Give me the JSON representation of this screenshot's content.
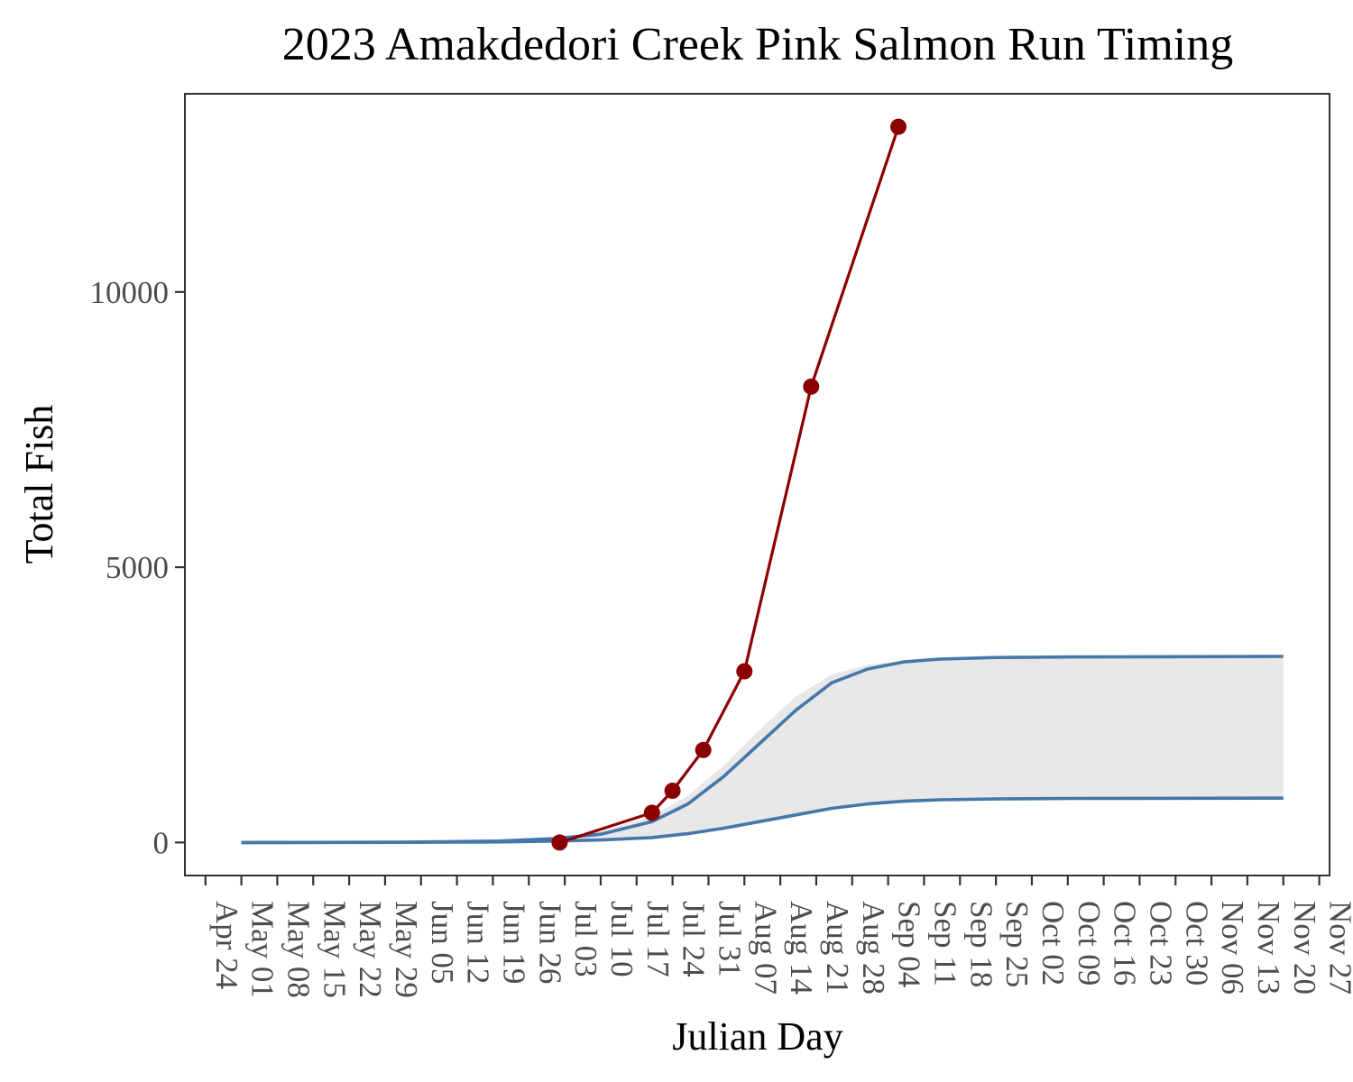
{
  "chart_data": {
    "type": "line",
    "title": "2023 Amakdedori Creek Pink Salmon Run Timing",
    "xlabel": "Julian Day",
    "ylabel": "Total Fish",
    "x_is_date": true,
    "xlim": [
      "2023-04-20",
      "2023-11-29"
    ],
    "ylim": [
      -600,
      13600
    ],
    "x_ticks": [
      "Apr 24",
      "May 01",
      "May 08",
      "May 15",
      "May 22",
      "May 29",
      "Jun 05",
      "Jun 12",
      "Jun 19",
      "Jun 26",
      "Jul 03",
      "Jul 10",
      "Jul 17",
      "Jul 24",
      "Jul 31",
      "Aug 07",
      "Aug 14",
      "Aug 21",
      "Aug 28",
      "Sep 04",
      "Sep 11",
      "Sep 18",
      "Sep 25",
      "Oct 02",
      "Oct 09",
      "Oct 16",
      "Oct 23",
      "Oct 30",
      "Nov 06",
      "Nov 13",
      "Nov 20",
      "Nov 27"
    ],
    "y_ticks": [
      0,
      5000,
      10000
    ],
    "grid": false,
    "series": [
      {
        "kind": "observed",
        "color": "#8b0000",
        "x": [
          "2023-07-02",
          "2023-07-20",
          "2023-07-24",
          "2023-07-30",
          "2023-08-07",
          "2023-08-20",
          "2023-09-06"
        ],
        "y": [
          0,
          540,
          940,
          1680,
          3110,
          8280,
          13000
        ]
      },
      {
        "kind": "upper-curve",
        "color": "#4577a8",
        "x": [
          "2023-05-01",
          "2023-06-01",
          "2023-06-20",
          "2023-07-01",
          "2023-07-10",
          "2023-07-20",
          "2023-07-27",
          "2023-08-03",
          "2023-08-10",
          "2023-08-17",
          "2023-08-24",
          "2023-08-31",
          "2023-09-07",
          "2023-09-14",
          "2023-09-25",
          "2023-10-10",
          "2023-11-20"
        ],
        "y": [
          0,
          5,
          25,
          70,
          150,
          380,
          700,
          1200,
          1800,
          2400,
          2900,
          3150,
          3280,
          3330,
          3360,
          3370,
          3380
        ]
      },
      {
        "kind": "lower-curve",
        "color": "#4577a8",
        "x": [
          "2023-05-01",
          "2023-06-01",
          "2023-06-20",
          "2023-07-01",
          "2023-07-10",
          "2023-07-20",
          "2023-07-27",
          "2023-08-03",
          "2023-08-10",
          "2023-08-17",
          "2023-08-24",
          "2023-08-31",
          "2023-09-07",
          "2023-09-14",
          "2023-09-25",
          "2023-10-10",
          "2023-11-20"
        ],
        "y": [
          0,
          2,
          10,
          25,
          45,
          90,
          160,
          260,
          380,
          500,
          620,
          700,
          750,
          775,
          790,
          800,
          805
        ]
      }
    ],
    "band": {
      "color": "#e8e8e8",
      "x": [
        "2023-05-01",
        "2023-06-01",
        "2023-06-20",
        "2023-07-01",
        "2023-07-10",
        "2023-07-20",
        "2023-07-27",
        "2023-08-03",
        "2023-08-10",
        "2023-08-17",
        "2023-08-24",
        "2023-08-31",
        "2023-09-07",
        "2023-09-14",
        "2023-09-25",
        "2023-10-10",
        "2023-11-20"
      ],
      "upper": [
        0,
        5,
        30,
        90,
        200,
        480,
        850,
        1400,
        2050,
        2650,
        3050,
        3230,
        3300,
        3330,
        3360,
        3370,
        3380
      ],
      "lower": [
        0,
        2,
        10,
        20,
        40,
        80,
        140,
        240,
        360,
        480,
        600,
        690,
        740,
        770,
        790,
        800,
        805
      ]
    }
  }
}
